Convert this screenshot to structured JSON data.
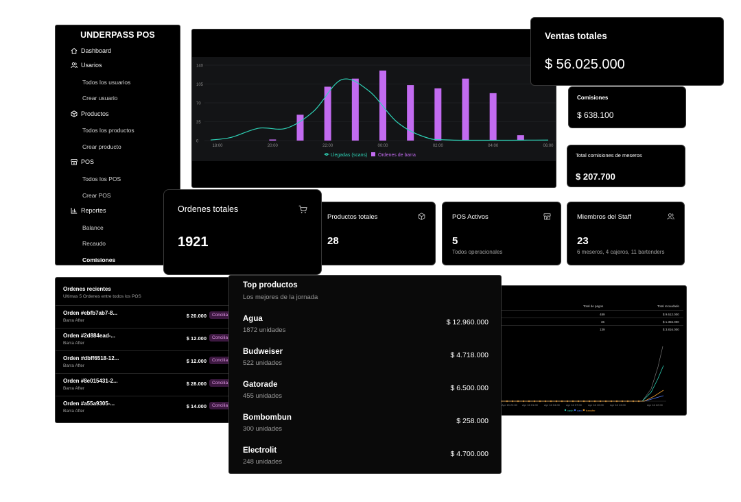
{
  "sidebar": {
    "brand": "UNDERPASS POS",
    "items": [
      {
        "label": "Dashboard"
      },
      {
        "label": "Usarios"
      },
      {
        "label": "Todos los usuarios"
      },
      {
        "label": "Crear usuario"
      },
      {
        "label": "Productos"
      },
      {
        "label": "Todos los productos"
      },
      {
        "label": "Crear producto"
      },
      {
        "label": "POS"
      },
      {
        "label": "Todos los POS"
      },
      {
        "label": "Crear POS"
      },
      {
        "label": "Reportes"
      },
      {
        "label": "Balance"
      },
      {
        "label": "Recaudo"
      },
      {
        "label": "Comisiones"
      }
    ]
  },
  "chart_data": {
    "type": "bar+line",
    "x": [
      "18:00",
      "20:00",
      "22:00",
      "00:00",
      "02:00",
      "04:00",
      "06:00"
    ],
    "ylim": [
      0,
      140
    ],
    "yticks": [
      "0",
      "35",
      "70",
      "105",
      "140"
    ],
    "series": [
      {
        "name": "Llegadas (scans)",
        "type": "line",
        "color": "#2ed3b7"
      },
      {
        "name": "Órdenes de barra",
        "type": "bar",
        "color": "#c26bf0",
        "points": [
          [
            20,
            2
          ],
          [
            21,
            48
          ],
          [
            22,
            100
          ],
          [
            23,
            115
          ],
          [
            24,
            130
          ],
          [
            25,
            103
          ],
          [
            26,
            97
          ],
          [
            27,
            115
          ],
          [
            28,
            88
          ],
          [
            29,
            10
          ]
        ]
      }
    ],
    "line_points": [
      [
        17.75,
        1
      ],
      [
        18.5,
        6
      ],
      [
        19.5,
        23
      ],
      [
        20.5,
        23
      ],
      [
        21.5,
        55
      ],
      [
        22.5,
        113
      ],
      [
        23.5,
        92
      ],
      [
        24.5,
        35
      ],
      [
        25.5,
        7
      ],
      [
        26.5,
        1
      ],
      [
        30,
        1
      ]
    ]
  },
  "ventas": {
    "title": "Ventas totales",
    "value": "$ 56.025.000"
  },
  "comisiones": {
    "title": "Comisiones",
    "value": "$ 638.100"
  },
  "meseros": {
    "title": "Total comisiones de meseros",
    "value": "$ 207.700"
  },
  "stats": {
    "ordenes": {
      "title": "Ordenes totales",
      "value": "1921"
    },
    "productos": {
      "title": "Productos totales",
      "value": "28"
    },
    "pos": {
      "title": "POS Activos",
      "value": "5",
      "sub": "Todos operacionales"
    },
    "staff": {
      "title": "Miembros del Staff",
      "value": "23",
      "sub": "6 meseros, 4 cajeros, 11 bartenders"
    }
  },
  "recientes": {
    "title": "Ordenes recientes",
    "subtitle": "Ultimas 5 Ordenes entre todos los POS",
    "rows": [
      {
        "id": "Orden #ebfb7ab7-8...",
        "loc": "Barra After",
        "amount": "$ 20.000",
        "badge": "Concilia"
      },
      {
        "id": "Orden #2d884ead-...",
        "loc": "Barra After",
        "amount": "$ 12.000",
        "badge": "Concilia"
      },
      {
        "id": "Orden #dbff6518-12...",
        "loc": "Barra After",
        "amount": "$ 12.000",
        "badge": "Concilia"
      },
      {
        "id": "Orden #8e015431-2...",
        "loc": "Barra After",
        "amount": "$ 28.000",
        "badge": "Concilia"
      },
      {
        "id": "Orden #a55a9305-...",
        "loc": "Barra After",
        "amount": "$ 14.000",
        "badge": "Concilia"
      }
    ]
  },
  "top": {
    "title": "Top productos",
    "subtitle": "Los mejores de la jornada",
    "items": [
      {
        "name": "Agua",
        "units": "1872 unidades",
        "price": "$ 12.960.000"
      },
      {
        "name": "Budweiser",
        "units": "522 unidades",
        "price": "$ 4.718.000"
      },
      {
        "name": "Gatorade",
        "units": "455 unidades",
        "price": "$ 6.500.000"
      },
      {
        "name": "Bombombun",
        "units": "300 unidades",
        "price": "$ 258.000"
      },
      {
        "name": "Electrolit",
        "units": "248 unidades",
        "price": "$ 4.700.000"
      }
    ]
  },
  "recaudo": {
    "headers": [
      "Total de pagos",
      "Total recaudado"
    ],
    "rows": [
      [
        "489",
        "$ 9.612.000"
      ],
      [
        "36",
        "$ 1.356.000"
      ],
      [
        "139",
        "$ 3.816.000"
      ]
    ],
    "x_labels": [
      "Apr 15 22:00",
      "Apr 16 01:00",
      "Apr 16 04:00",
      "Apr 16 07:00",
      "Apr 16 10:00",
      "Apr 16 13:00",
      "Apr 16 22:00"
    ],
    "legend": [
      "cash",
      "card",
      "transfer"
    ],
    "legend_colors": [
      "#2ed3b7",
      "#4f7cff",
      "#f0a030"
    ]
  }
}
